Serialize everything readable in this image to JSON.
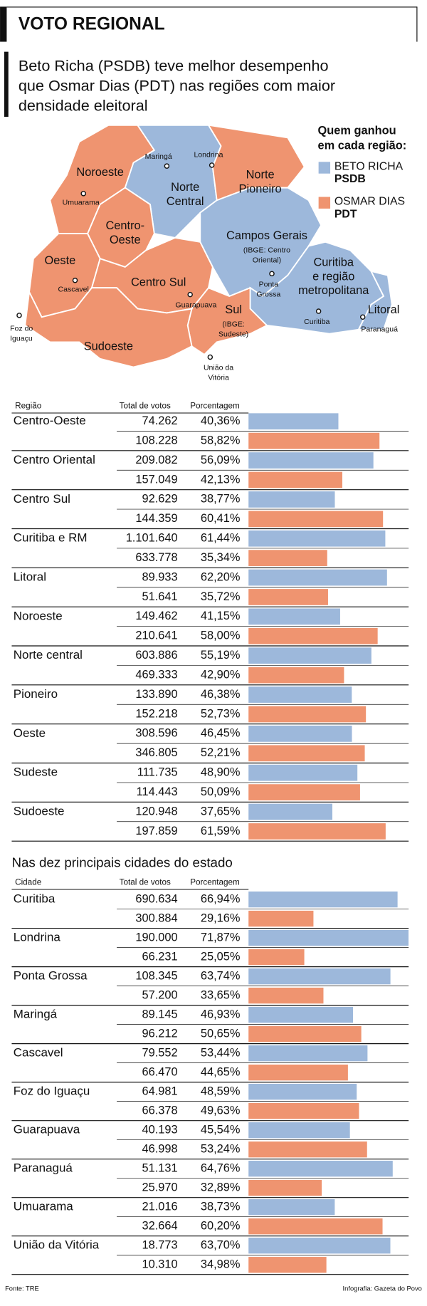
{
  "header": {
    "title": "VOTO REGIONAL",
    "subtitle_lines": [
      "Beto Richa (PSDB) teve melhor desempenho",
      "que Osmar Dias (PDT) nas regiões com maior",
      "densidade eleitoral"
    ]
  },
  "map": {
    "legend": {
      "title_lines": [
        "Quem ganhou",
        "em cada região:"
      ],
      "items": [
        {
          "lines": [
            "BETO RICHA",
            "PSDB"
          ],
          "color": "#9db8db"
        },
        {
          "lines": [
            "OSMAR DIAS",
            "PDT"
          ],
          "color": "#ef9470"
        }
      ]
    },
    "regions": [
      {
        "lines": [
          "Noroeste"
        ]
      },
      {
        "lines": [
          "Norte",
          "Central"
        ]
      },
      {
        "lines": [
          "Norte",
          "Pioneiro"
        ]
      },
      {
        "lines": [
          "Centro-",
          "Oeste"
        ]
      },
      {
        "lines": [
          "Campos Gerais",
          "(IBGE: Centro",
          "Oriental)"
        ]
      },
      {
        "lines": [
          "Curitiba",
          "e região",
          "metropolitana"
        ]
      },
      {
        "lines": [
          "Litoral"
        ]
      },
      {
        "lines": [
          "Oeste"
        ]
      },
      {
        "lines": [
          "Centro Sul"
        ]
      },
      {
        "lines": [
          "Sul",
          "(IBGE:",
          "Sudeste)"
        ]
      },
      {
        "lines": [
          "Sudoeste"
        ]
      }
    ],
    "cities": [
      {
        "lines": [
          "Maringá"
        ]
      },
      {
        "lines": [
          "Londrina"
        ]
      },
      {
        "lines": [
          "Umuarama"
        ]
      },
      {
        "lines": [
          "Cascavel"
        ]
      },
      {
        "lines": [
          "Foz do",
          "Iguaçu"
        ]
      },
      {
        "lines": [
          "Guarapuava"
        ]
      },
      {
        "lines": [
          "Ponta",
          "Grossa"
        ]
      },
      {
        "lines": [
          "Curitiba"
        ]
      },
      {
        "lines": [
          "Paranaguá"
        ]
      },
      {
        "lines": [
          "União da",
          "Vitória"
        ]
      }
    ]
  },
  "regions_table": {
    "headers": [
      "Região",
      "Total de votos",
      "Porcentagem"
    ],
    "rows": [
      {
        "name": "Centro-Oeste",
        "candidates": [
          {
            "votes": "74.262",
            "pct": {
              "value": 40.36,
              "label": "40,36%"
            }
          },
          {
            "votes": "108.228",
            "pct": {
              "value": 58.82,
              "label": "58,82%"
            }
          }
        ]
      },
      {
        "name": "Centro Oriental",
        "candidates": [
          {
            "votes": "209.082",
            "pct": {
              "value": 56.09,
              "label": "56,09%"
            }
          },
          {
            "votes": "157.049",
            "pct": {
              "value": 42.13,
              "label": "42,13%"
            }
          }
        ]
      },
      {
        "name": "Centro Sul",
        "candidates": [
          {
            "votes": "92.629",
            "pct": {
              "value": 38.77,
              "label": "38,77%"
            }
          },
          {
            "votes": "144.359",
            "pct": {
              "value": 60.41,
              "label": "60,41%"
            }
          }
        ]
      },
      {
        "name": "Curitiba e RM",
        "candidates": [
          {
            "votes": "1.101.640",
            "pct": {
              "value": 61.44,
              "label": "61,44%"
            }
          },
          {
            "votes": "633.778",
            "pct": {
              "value": 35.34,
              "label": "35,34%"
            }
          }
        ]
      },
      {
        "name": "Litoral",
        "candidates": [
          {
            "votes": "89.933",
            "pct": {
              "value": 62.2,
              "label": "62,20%"
            }
          },
          {
            "votes": "51.641",
            "pct": {
              "value": 35.72,
              "label": "35,72%"
            }
          }
        ]
      },
      {
        "name": "Noroeste",
        "candidates": [
          {
            "votes": "149.462",
            "pct": {
              "value": 41.15,
              "label": "41,15%"
            }
          },
          {
            "votes": "210.641",
            "pct": {
              "value": 58.0,
              "label": "58,00%"
            }
          }
        ]
      },
      {
        "name": "Norte central",
        "candidates": [
          {
            "votes": "603.886",
            "pct": {
              "value": 55.19,
              "label": "55,19%"
            }
          },
          {
            "votes": "469.333",
            "pct": {
              "value": 42.9,
              "label": "42,90%"
            }
          }
        ]
      },
      {
        "name": "Pioneiro",
        "candidates": [
          {
            "votes": "133.890",
            "pct": {
              "value": 46.38,
              "label": "46,38%"
            }
          },
          {
            "votes": "152.218",
            "pct": {
              "value": 52.73,
              "label": "52,73%"
            }
          }
        ]
      },
      {
        "name": "Oeste",
        "candidates": [
          {
            "votes": "308.596",
            "pct": {
              "value": 46.45,
              "label": "46,45%"
            }
          },
          {
            "votes": "346.805",
            "pct": {
              "value": 52.21,
              "label": "52,21%"
            }
          }
        ]
      },
      {
        "name": "Sudeste",
        "candidates": [
          {
            "votes": "111.735",
            "pct": {
              "value": 48.9,
              "label": "48,90%"
            }
          },
          {
            "votes": "114.443",
            "pct": {
              "value": 50.09,
              "label": "50,09%"
            }
          }
        ]
      },
      {
        "name": "Sudoeste",
        "candidates": [
          {
            "votes": "120.948",
            "pct": {
              "value": 37.65,
              "label": "37,65%"
            }
          },
          {
            "votes": "197.859",
            "pct": {
              "value": 61.59,
              "label": "61,59%"
            }
          }
        ]
      }
    ]
  },
  "cities_table": {
    "title": "Nas dez principais cidades do estado",
    "headers": [
      "Cidade",
      "Total de votos",
      "Porcentagem"
    ],
    "rows": [
      {
        "name": "Curitiba",
        "candidates": [
          {
            "votes": "690.634",
            "pct": {
              "value": 66.94,
              "label": "66,94%"
            }
          },
          {
            "votes": "300.884",
            "pct": {
              "value": 29.16,
              "label": "29,16%"
            }
          }
        ]
      },
      {
        "name": "Londrina",
        "candidates": [
          {
            "votes": "190.000",
            "pct": {
              "value": 71.87,
              "label": "71,87%"
            }
          },
          {
            "votes": "66.231",
            "pct": {
              "value": 25.05,
              "label": "25,05%"
            }
          }
        ]
      },
      {
        "name": "Ponta Grossa",
        "candidates": [
          {
            "votes": "108.345",
            "pct": {
              "value": 63.74,
              "label": "63,74%"
            }
          },
          {
            "votes": "57.200",
            "pct": {
              "value": 33.65,
              "label": "33,65%"
            }
          }
        ]
      },
      {
        "name": "Maringá",
        "candidates": [
          {
            "votes": "89.145",
            "pct": {
              "value": 46.93,
              "label": "46,93%"
            }
          },
          {
            "votes": "96.212",
            "pct": {
              "value": 50.65,
              "label": "50,65%"
            }
          }
        ]
      },
      {
        "name": "Cascavel",
        "candidates": [
          {
            "votes": "79.552",
            "pct": {
              "value": 53.44,
              "label": "53,44%"
            }
          },
          {
            "votes": "66.470",
            "pct": {
              "value": 44.65,
              "label": "44,65%"
            }
          }
        ]
      },
      {
        "name": "Foz do Iguaçu",
        "candidates": [
          {
            "votes": "64.981",
            "pct": {
              "value": 48.59,
              "label": "48,59%"
            }
          },
          {
            "votes": "66.378",
            "pct": {
              "value": 49.63,
              "label": "49,63%"
            }
          }
        ]
      },
      {
        "name": "Guarapuava",
        "candidates": [
          {
            "votes": "40.193",
            "pct": {
              "value": 45.54,
              "label": "45,54%"
            }
          },
          {
            "votes": "46.998",
            "pct": {
              "value": 53.24,
              "label": "53,24%"
            }
          }
        ]
      },
      {
        "name": "Paranaguá",
        "candidates": [
          {
            "votes": "51.131",
            "pct": {
              "value": 64.76,
              "label": "64,76%"
            }
          },
          {
            "votes": "25.970",
            "pct": {
              "value": 32.89,
              "label": "32,89%"
            }
          }
        ]
      },
      {
        "name": "Umuarama",
        "candidates": [
          {
            "votes": "21.016",
            "pct": {
              "value": 38.73,
              "label": "38,73%"
            }
          },
          {
            "votes": "32.664",
            "pct": {
              "value": 60.2,
              "label": "60,20%"
            }
          }
        ]
      },
      {
        "name": "União da Vitória",
        "candidates": [
          {
            "votes": "18.773",
            "pct": {
              "value": 63.7,
              "label": "63,70%"
            }
          },
          {
            "votes": "10.310",
            "pct": {
              "value": 34.98,
              "label": "34,98%"
            }
          }
        ]
      }
    ]
  },
  "footer": {
    "source": "Fonte: TRE",
    "credit": "Infografia: Gazeta do Povo"
  }
}
